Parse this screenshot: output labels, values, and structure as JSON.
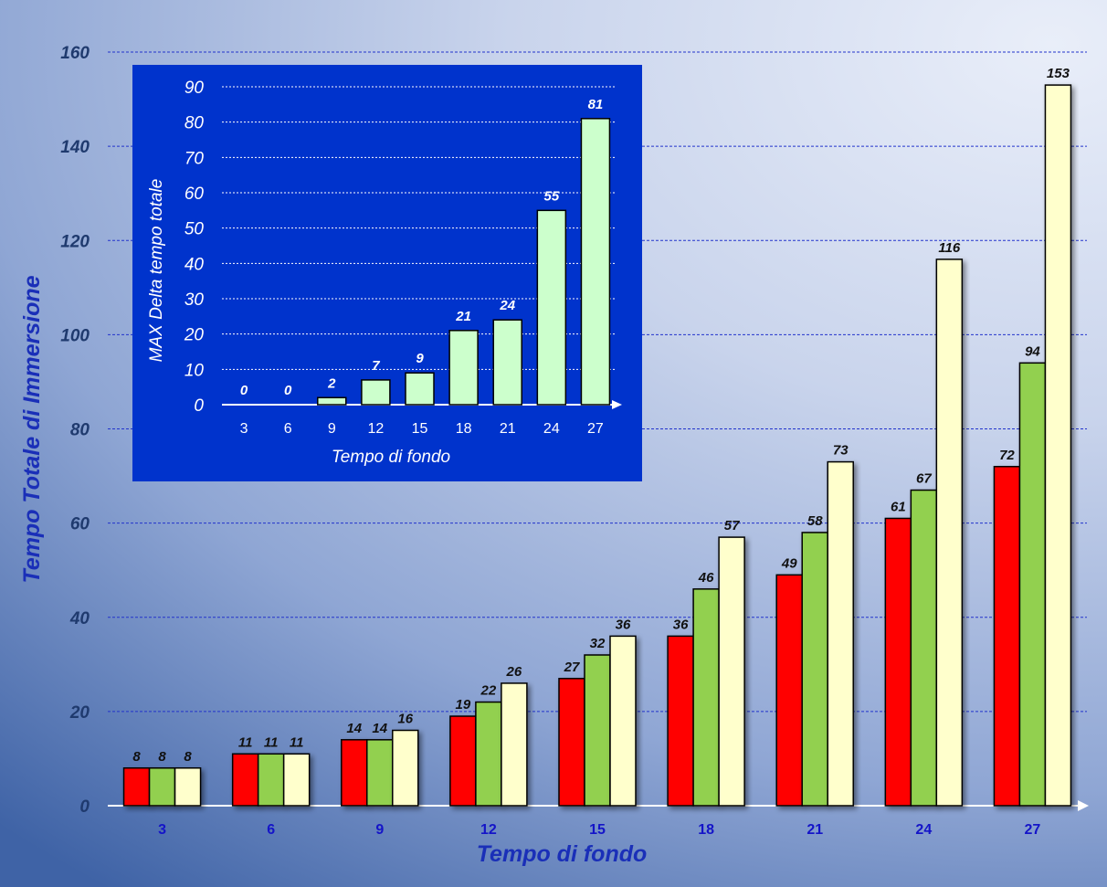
{
  "chart_data": [
    {
      "type": "bar",
      "title": "",
      "xlabel": "Tempo di fondo",
      "ylabel": "Tempo Totale di Immersione",
      "categories": [
        "3",
        "6",
        "9",
        "12",
        "15",
        "18",
        "21",
        "24",
        "27"
      ],
      "ylim": [
        0,
        160
      ],
      "yticks": [
        "0",
        "20",
        "40",
        "60",
        "80",
        "100",
        "120",
        "140",
        "160"
      ],
      "grid": true,
      "legend": "none",
      "series": [
        {
          "values": [
            8,
            11,
            14,
            19,
            27,
            36,
            49,
            61,
            72
          ],
          "color": "#ff0000"
        },
        {
          "values": [
            8,
            11,
            14,
            22,
            32,
            46,
            58,
            67,
            94
          ],
          "color": "#92d050"
        },
        {
          "values": [
            8,
            11,
            16,
            26,
            36,
            57,
            73,
            116,
            153
          ],
          "color": "#ffffcc"
        }
      ]
    },
    {
      "type": "bar",
      "title": "",
      "xlabel": "Tempo di fondo",
      "ylabel": "MAX Delta tempo totale",
      "categories": [
        "3",
        "6",
        "9",
        "12",
        "15",
        "18",
        "21",
        "24",
        "27"
      ],
      "ylim": [
        0,
        90
      ],
      "yticks": [
        "0",
        "10",
        "20",
        "30",
        "40",
        "50",
        "60",
        "70",
        "80",
        "90"
      ],
      "grid": true,
      "legend": "none",
      "series": [
        {
          "values": [
            0,
            0,
            2,
            7,
            9,
            21,
            24,
            55,
            81
          ],
          "color": "#ccffcc"
        }
      ],
      "panel_color": "#0033cc"
    }
  ]
}
